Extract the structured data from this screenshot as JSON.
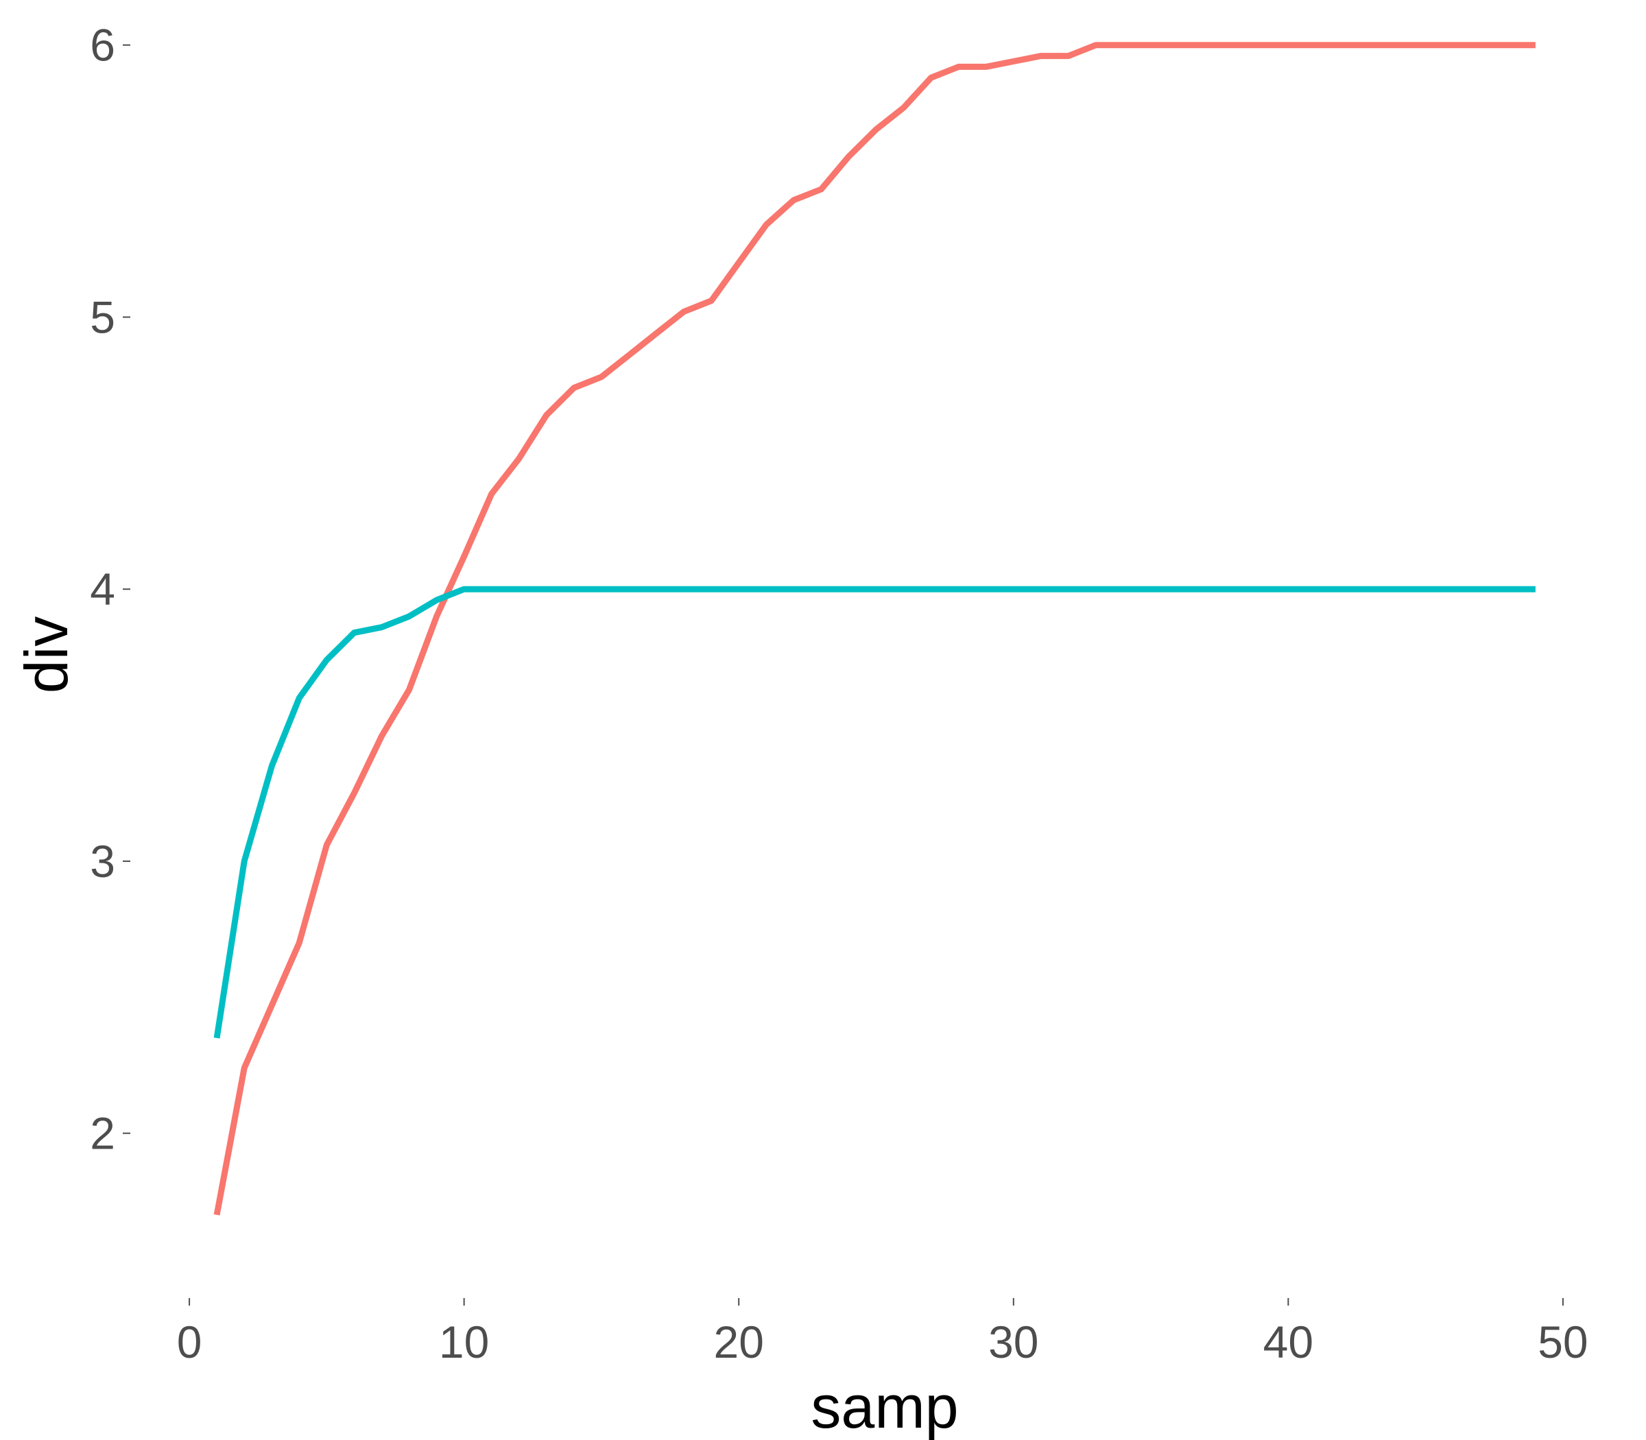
{
  "chart_data": {
    "type": "line",
    "title": "",
    "xlabel": "samp",
    "ylabel": "div",
    "xlim": [
      -1.4,
      51.4
    ],
    "ylim": [
      1.49,
      6.09
    ],
    "xticks": [
      0,
      10,
      20,
      30,
      40,
      50
    ],
    "xtick_labels": [
      "0",
      "10",
      "20",
      "30",
      "40",
      "50"
    ],
    "yticks": [
      2,
      3,
      4,
      5,
      6
    ],
    "ytick_labels": [
      "2",
      "3",
      "4",
      "5",
      "6"
    ],
    "grid": false,
    "legend": "none",
    "series": [
      {
        "color": "#F8766D",
        "x": [
          1,
          2,
          3,
          4,
          5,
          6,
          7,
          8,
          9,
          10,
          11,
          12,
          13,
          14,
          15,
          16,
          17,
          18,
          19,
          20,
          21,
          22,
          23,
          24,
          25,
          26,
          27,
          28,
          29,
          30,
          31,
          32,
          33,
          34,
          35,
          36,
          37,
          38,
          39,
          40,
          41,
          42,
          43,
          44,
          45,
          46,
          47,
          48,
          49
        ],
        "y": [
          1.7,
          2.24,
          2.47,
          2.7,
          3.06,
          3.25,
          3.46,
          3.63,
          3.9,
          4.12,
          4.35,
          4.48,
          4.64,
          4.74,
          4.78,
          4.86,
          4.94,
          5.02,
          5.06,
          5.2,
          5.34,
          5.43,
          5.47,
          5.59,
          5.69,
          5.77,
          5.88,
          5.92,
          5.92,
          5.94,
          5.96,
          5.96,
          6.0,
          6.0,
          6.0,
          6.0,
          6.0,
          6.0,
          6.0,
          6.0,
          6.0,
          6.0,
          6.0,
          6.0,
          6.0,
          6.0,
          6.0,
          6.0,
          6.0
        ]
      },
      {
        "color": "#00BFC4",
        "x": [
          1,
          2,
          3,
          4,
          5,
          6,
          7,
          8,
          9,
          10,
          11,
          12,
          13,
          14,
          15,
          16,
          17,
          18,
          19,
          20,
          21,
          22,
          23,
          24,
          25,
          26,
          27,
          28,
          29,
          30,
          31,
          32,
          33,
          34,
          35,
          36,
          37,
          38,
          39,
          40,
          41,
          42,
          43,
          44,
          45,
          46,
          47,
          48,
          49
        ],
        "y": [
          2.35,
          3.0,
          3.35,
          3.6,
          3.74,
          3.84,
          3.86,
          3.9,
          3.96,
          4.0,
          4.0,
          4.0,
          4.0,
          4.0,
          4.0,
          4.0,
          4.0,
          4.0,
          4.0,
          4.0,
          4.0,
          4.0,
          4.0,
          4.0,
          4.0,
          4.0,
          4.0,
          4.0,
          4.0,
          4.0,
          4.0,
          4.0,
          4.0,
          4.0,
          4.0,
          4.0,
          4.0,
          4.0,
          4.0,
          4.0,
          4.0,
          4.0,
          4.0,
          4.0,
          4.0,
          4.0,
          4.0,
          4.0,
          4.0
        ]
      }
    ]
  }
}
